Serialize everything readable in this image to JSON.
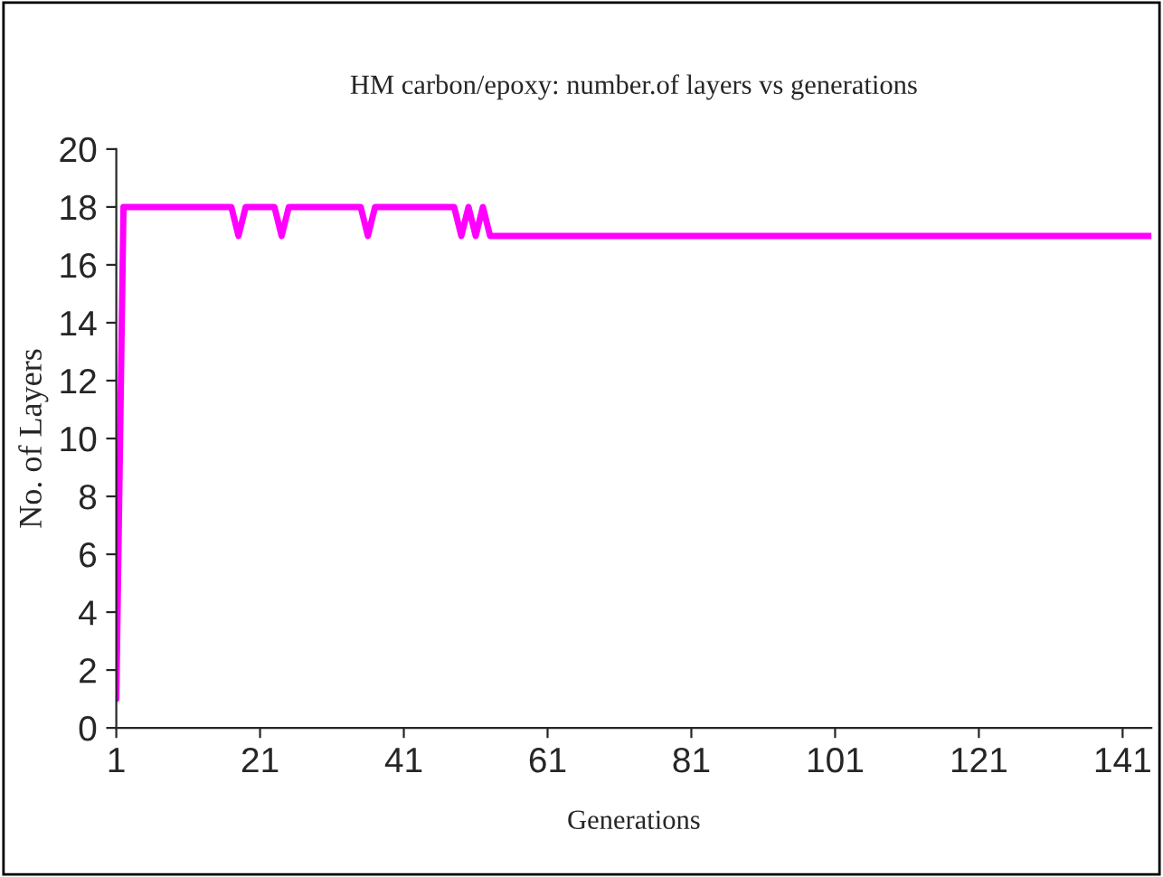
{
  "chart_data": {
    "type": "line",
    "title": "HM carbon/epoxy: number.of layers vs generations",
    "xlabel": "Generations",
    "ylabel": "No. of Layers",
    "series": [
      {
        "color": "#ff00ff",
        "x": [
          1,
          2,
          17,
          18,
          19,
          23,
          24,
          25,
          35,
          36,
          37,
          48,
          49,
          50,
          51,
          52,
          53,
          54,
          145
        ],
        "values": [
          1,
          18,
          18,
          17,
          18,
          18,
          17,
          18,
          18,
          17,
          18,
          18,
          17,
          18,
          17,
          18,
          17,
          17,
          17
        ]
      }
    ],
    "xlim": [
      1,
      145
    ],
    "xticks": [
      1,
      21,
      41,
      61,
      81,
      101,
      121,
      141
    ],
    "ylim": [
      0,
      20
    ],
    "yticks": [
      0,
      2,
      4,
      6,
      8,
      10,
      12,
      14,
      16,
      18,
      20
    ],
    "grid": false,
    "legend": false
  }
}
